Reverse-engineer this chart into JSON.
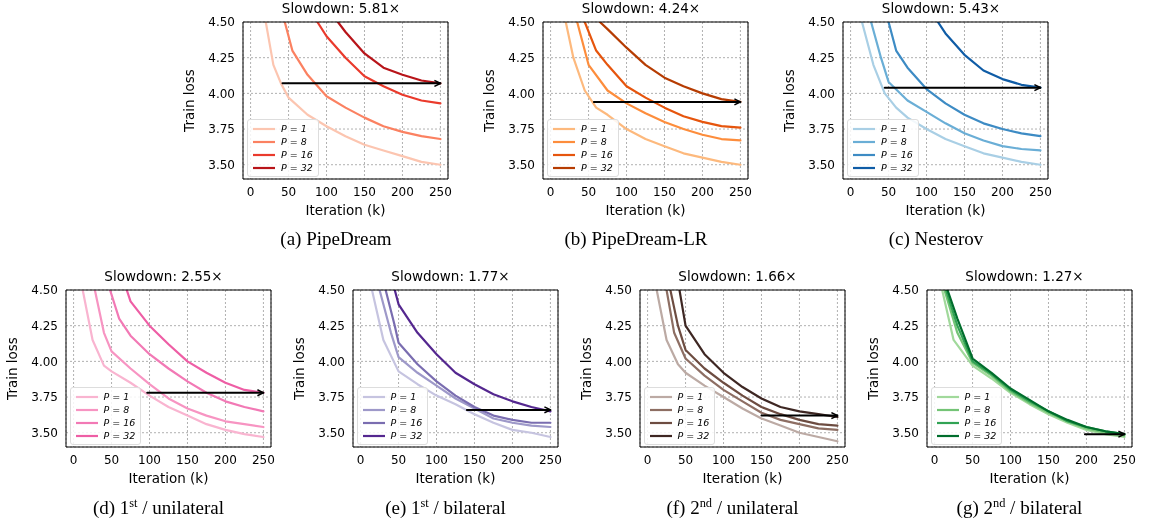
{
  "chart_data": [
    {
      "type": "line",
      "title": "Slowdown: 5.81×",
      "xlabel": "Iteration (k)",
      "ylabel": "Train loss",
      "annotations": [
        "(a) PipeDream"
      ],
      "xlim": [
        -10,
        260
      ],
      "xticks": [
        0,
        50,
        100,
        150,
        200,
        250
      ],
      "ylim": [
        3.4,
        4.5
      ],
      "yticks": [
        {
          "value": 3.5,
          "label": "3.50"
        },
        {
          "value": 3.75,
          "label": "3.75"
        },
        {
          "value": 4,
          "label": "4.00"
        },
        {
          "value": 4.25,
          "label": "4.25"
        },
        {
          "value": 4.5,
          "label": "4.50"
        }
      ],
      "grid": true,
      "legend": "bottom left",
      "series": [
        {
          "name": "P = 1",
          "color": "#fcc5b0",
          "x": [
            20,
            30,
            40,
            50,
            75,
            100,
            125,
            150,
            175,
            200,
            225,
            250
          ],
          "values": [
            4.5,
            4.2,
            4.07,
            3.97,
            3.85,
            3.77,
            3.7,
            3.64,
            3.6,
            3.56,
            3.52,
            3.5
          ]
        },
        {
          "name": "P = 8",
          "color": "#fb8161",
          "x": [
            45,
            55,
            75,
            100,
            125,
            150,
            175,
            200,
            225,
            250
          ],
          "values": [
            4.5,
            4.3,
            4.13,
            3.98,
            3.9,
            3.83,
            3.77,
            3.73,
            3.7,
            3.68
          ]
        },
        {
          "name": "P = 16",
          "color": "#ea3a2c",
          "x": [
            88,
            100,
            125,
            150,
            175,
            200,
            225,
            250
          ],
          "values": [
            4.5,
            4.4,
            4.25,
            4.12,
            4.05,
            3.99,
            3.95,
            3.93
          ]
        },
        {
          "name": "P = 32",
          "color": "#b81419",
          "x": [
            115,
            125,
            150,
            175,
            200,
            225,
            250
          ],
          "values": [
            4.5,
            4.43,
            4.28,
            4.18,
            4.13,
            4.09,
            4.07
          ]
        },
        {
          "type": "line",
          "color": "#000000",
          "x": [
            42,
            250
          ],
          "values": [
            4.07,
            4.07
          ]
        }
      ]
    },
    {
      "type": "line",
      "title": "Slowdown: 4.24×",
      "xlabel": "Iteration (k)",
      "ylabel": "Train loss",
      "annotations": [
        "(b) PipeDream-LR"
      ],
      "xlim": [
        -10,
        260
      ],
      "xticks": [
        0,
        50,
        100,
        150,
        200,
        250
      ],
      "ylim": [
        3.4,
        4.5
      ],
      "yticks": [
        {
          "value": 3.5,
          "label": "3.50"
        },
        {
          "value": 3.75,
          "label": "3.75"
        },
        {
          "value": 4,
          "label": "4.00"
        },
        {
          "value": 4.25,
          "label": "4.25"
        },
        {
          "value": 4.5,
          "label": "4.50"
        }
      ],
      "grid": true,
      "legend": "bottom left",
      "series": [
        {
          "name": "P = 1",
          "color": "#fdb97d",
          "x": [
            20,
            30,
            45,
            60,
            75,
            100,
            125,
            150,
            175,
            200,
            225,
            250
          ],
          "values": [
            4.5,
            4.25,
            4.02,
            3.9,
            3.85,
            3.75,
            3.68,
            3.63,
            3.58,
            3.55,
            3.52,
            3.5
          ]
        },
        {
          "name": "P = 8",
          "color": "#fd8d3c",
          "x": [
            35,
            50,
            75,
            100,
            125,
            150,
            175,
            200,
            225,
            250
          ],
          "values": [
            4.5,
            4.2,
            4.02,
            3.93,
            3.86,
            3.8,
            3.75,
            3.71,
            3.68,
            3.67
          ]
        },
        {
          "name": "P = 16",
          "color": "#e6550d",
          "x": [
            45,
            60,
            75,
            100,
            125,
            150,
            175,
            200,
            225,
            250
          ],
          "values": [
            4.5,
            4.3,
            4.2,
            4.05,
            3.97,
            3.9,
            3.84,
            3.8,
            3.77,
            3.76
          ]
        },
        {
          "name": "P = 32",
          "color": "#b63c02",
          "x": [
            65,
            75,
            100,
            125,
            150,
            175,
            200,
            225,
            250
          ],
          "values": [
            4.5,
            4.45,
            4.32,
            4.2,
            4.11,
            4.05,
            4.0,
            3.96,
            3.94
          ]
        },
        {
          "type": "line",
          "color": "#000000",
          "x": [
            57,
            250
          ],
          "values": [
            3.94,
            3.94
          ]
        }
      ]
    },
    {
      "type": "line",
      "title": "Slowdown: 5.43×",
      "xlabel": "Iteration (k)",
      "ylabel": "Train loss",
      "annotations": [
        "(c) Nesterov"
      ],
      "xlim": [
        -10,
        260
      ],
      "xticks": [
        0,
        50,
        100,
        150,
        200,
        250
      ],
      "ylim": [
        3.4,
        4.5
      ],
      "yticks": [
        {
          "value": 3.5,
          "label": "3.50"
        },
        {
          "value": 3.75,
          "label": "3.75"
        },
        {
          "value": 4,
          "label": "4.00"
        },
        {
          "value": 4.25,
          "label": "4.25"
        },
        {
          "value": 4.5,
          "label": "4.50"
        }
      ],
      "grid": true,
      "legend": "bottom left",
      "series": [
        {
          "name": "P = 1",
          "color": "#a9cfe5",
          "x": [
            15,
            30,
            45,
            60,
            75,
            100,
            125,
            150,
            175,
            200,
            225,
            250
          ],
          "values": [
            4.5,
            4.2,
            4.0,
            3.9,
            3.83,
            3.75,
            3.68,
            3.63,
            3.58,
            3.55,
            3.52,
            3.5
          ]
        },
        {
          "name": "P = 8",
          "color": "#6aaed6",
          "x": [
            27,
            40,
            50,
            75,
            100,
            125,
            150,
            175,
            200,
            225,
            250
          ],
          "values": [
            4.5,
            4.25,
            4.08,
            3.95,
            3.87,
            3.79,
            3.72,
            3.67,
            3.63,
            3.61,
            3.6
          ]
        },
        {
          "name": "P = 16",
          "color": "#3d8bc4",
          "x": [
            50,
            60,
            75,
            100,
            125,
            150,
            175,
            200,
            225,
            250
          ],
          "values": [
            4.5,
            4.3,
            4.18,
            4.03,
            3.93,
            3.85,
            3.79,
            3.75,
            3.72,
            3.7
          ]
        },
        {
          "name": "P = 32",
          "color": "#0f5ca6",
          "x": [
            115,
            125,
            150,
            175,
            200,
            225,
            250
          ],
          "values": [
            4.5,
            4.42,
            4.27,
            4.16,
            4.1,
            4.06,
            4.04
          ]
        },
        {
          "type": "line",
          "color": "#000000",
          "x": [
            45,
            250
          ],
          "values": [
            4.04,
            4.04
          ]
        }
      ]
    },
    {
      "type": "line",
      "title": "Slowdown: 2.55×",
      "xlabel": "Iteration (k)",
      "ylabel": "Train loss",
      "annotations": [
        "(d) 1$^{st}$ / unilateral"
      ],
      "xlim": [
        -10,
        260
      ],
      "xticks": [
        0,
        50,
        100,
        150,
        200,
        250
      ],
      "ylim": [
        3.4,
        4.5
      ],
      "yticks": [
        {
          "value": 3.5,
          "label": "3.50"
        },
        {
          "value": 3.75,
          "label": "3.75"
        },
        {
          "value": 4,
          "label": "4.00"
        },
        {
          "value": 4.25,
          "label": "4.25"
        },
        {
          "value": 4.5,
          "label": "4.50"
        }
      ],
      "grid": true,
      "legend": "bottom left",
      "series": [
        {
          "name": "P = 1",
          "color": "#f9b4d0",
          "x": [
            12,
            25,
            40,
            50,
            75,
            100,
            125,
            150,
            175,
            200,
            225,
            250
          ],
          "values": [
            4.5,
            4.15,
            3.97,
            3.93,
            3.85,
            3.76,
            3.68,
            3.62,
            3.56,
            3.52,
            3.49,
            3.47
          ]
        },
        {
          "name": "P = 8",
          "color": "#f794c2",
          "x": [
            28,
            40,
            50,
            75,
            100,
            125,
            150,
            175,
            200,
            225,
            250
          ],
          "values": [
            4.5,
            4.2,
            4.07,
            3.95,
            3.84,
            3.74,
            3.67,
            3.62,
            3.58,
            3.56,
            3.54
          ]
        },
        {
          "name": "P = 16",
          "color": "#f279b5",
          "x": [
            48,
            60,
            75,
            100,
            125,
            150,
            175,
            200,
            225,
            250
          ],
          "values": [
            4.5,
            4.3,
            4.18,
            4.05,
            3.95,
            3.86,
            3.78,
            3.72,
            3.68,
            3.65
          ]
        },
        {
          "name": "P = 32",
          "color": "#ee5ea5",
          "x": [
            70,
            75,
            100,
            125,
            150,
            175,
            200,
            225,
            250
          ],
          "values": [
            4.5,
            4.42,
            4.25,
            4.12,
            4.0,
            3.92,
            3.85,
            3.8,
            3.78
          ]
        },
        {
          "type": "line",
          "color": "#000000",
          "x": [
            97,
            250
          ],
          "values": [
            3.78,
            3.78
          ]
        }
      ]
    },
    {
      "type": "line",
      "title": "Slowdown: 1.77×",
      "xlabel": "Iteration (k)",
      "ylabel": "Train loss",
      "annotations": [
        "(e) 1$^{st}$ / bilateral"
      ],
      "xlim": [
        -10,
        260
      ],
      "xticks": [
        0,
        50,
        100,
        150,
        200,
        250
      ],
      "ylim": [
        3.4,
        4.5
      ],
      "yticks": [
        {
          "value": 3.5,
          "label": "3.50"
        },
        {
          "value": 3.75,
          "label": "3.75"
        },
        {
          "value": 4,
          "label": "4.00"
        },
        {
          "value": 4.25,
          "label": "4.25"
        },
        {
          "value": 4.5,
          "label": "4.50"
        }
      ],
      "grid": true,
      "legend": "bottom left",
      "series": [
        {
          "name": "P = 1",
          "color": "#c6c4e0",
          "x": [
            15,
            30,
            50,
            75,
            100,
            125,
            150,
            175,
            200,
            225,
            250
          ],
          "values": [
            4.5,
            4.15,
            3.93,
            3.84,
            3.76,
            3.7,
            3.63,
            3.57,
            3.52,
            3.5,
            3.47
          ]
        },
        {
          "name": "P = 8",
          "color": "#9e99c9",
          "x": [
            25,
            40,
            50,
            75,
            100,
            125,
            150,
            175,
            200,
            225,
            250
          ],
          "values": [
            4.5,
            4.2,
            4.03,
            3.92,
            3.83,
            3.74,
            3.67,
            3.6,
            3.57,
            3.55,
            3.54
          ]
        },
        {
          "name": "P = 16",
          "color": "#7a6db0",
          "x": [
            33,
            45,
            50,
            75,
            100,
            125,
            150,
            175,
            200,
            225,
            250
          ],
          "values": [
            4.5,
            4.25,
            4.13,
            3.98,
            3.86,
            3.76,
            3.68,
            3.62,
            3.59,
            3.57,
            3.57
          ]
        },
        {
          "name": "P = 32",
          "color": "#54278f",
          "x": [
            45,
            50,
            75,
            100,
            125,
            150,
            175,
            200,
            225,
            250
          ],
          "values": [
            4.5,
            4.4,
            4.2,
            4.05,
            3.92,
            3.84,
            3.77,
            3.72,
            3.68,
            3.65
          ]
        },
        {
          "type": "line",
          "color": "#000000",
          "x": [
            140,
            250
          ],
          "values": [
            3.66,
            3.66
          ]
        }
      ]
    },
    {
      "type": "line",
      "title": "Slowdown: 1.66×",
      "xlabel": "Iteration (k)",
      "ylabel": "Train loss",
      "annotations": [
        "(f) 2$^{nd}$ / unilateral"
      ],
      "xlim": [
        -10,
        260
      ],
      "xticks": [
        0,
        50,
        100,
        150,
        200,
        250
      ],
      "ylim": [
        3.4,
        4.5
      ],
      "yticks": [
        {
          "value": 3.5,
          "label": "3.50"
        },
        {
          "value": 3.75,
          "label": "3.75"
        },
        {
          "value": 4,
          "label": "4.00"
        },
        {
          "value": 4.25,
          "label": "4.25"
        },
        {
          "value": 4.5,
          "label": "4.50"
        }
      ],
      "grid": true,
      "legend": "bottom left",
      "series": [
        {
          "name": "P = 1",
          "color": "#bcaaa4",
          "x": [
            12,
            25,
            40,
            50,
            75,
            100,
            125,
            150,
            175,
            200,
            225,
            250
          ],
          "values": [
            4.5,
            4.15,
            3.98,
            3.92,
            3.83,
            3.75,
            3.67,
            3.6,
            3.55,
            3.5,
            3.47,
            3.44
          ]
        },
        {
          "name": "P = 8",
          "color": "#8d6e63",
          "x": [
            25,
            35,
            50,
            75,
            100,
            125,
            150,
            175,
            200,
            225,
            250
          ],
          "values": [
            4.5,
            4.2,
            4.02,
            3.9,
            3.8,
            3.72,
            3.64,
            3.59,
            3.56,
            3.53,
            3.52
          ]
        },
        {
          "name": "P = 16",
          "color": "#6d4c41",
          "x": [
            30,
            40,
            50,
            75,
            100,
            125,
            150,
            175,
            200,
            225,
            250
          ],
          "values": [
            4.5,
            4.25,
            4.08,
            3.95,
            3.85,
            3.76,
            3.68,
            3.63,
            3.59,
            3.56,
            3.55
          ]
        },
        {
          "name": "P = 32",
          "color": "#3e2723",
          "x": [
            42,
            50,
            75,
            100,
            125,
            150,
            175,
            200,
            225,
            250
          ],
          "values": [
            4.5,
            4.25,
            4.05,
            3.92,
            3.82,
            3.74,
            3.68,
            3.65,
            3.63,
            3.61
          ]
        },
        {
          "type": "line",
          "color": "#000000",
          "x": [
            150,
            250
          ],
          "values": [
            3.62,
            3.62
          ]
        }
      ]
    },
    {
      "type": "line",
      "title": "Slowdown: 1.27×",
      "xlabel": "Iteration (k)",
      "ylabel": "Train loss",
      "annotations": [
        "(g) 2$^{nd}$ / bilateral"
      ],
      "xlim": [
        -10,
        260
      ],
      "xticks": [
        0,
        50,
        100,
        150,
        200,
        250
      ],
      "ylim": [
        3.4,
        4.5
      ],
      "yticks": [
        {
          "value": 3.5,
          "label": "3.50"
        },
        {
          "value": 3.75,
          "label": "3.75"
        },
        {
          "value": 4,
          "label": "4.00"
        },
        {
          "value": 4.25,
          "label": "4.25"
        },
        {
          "value": 4.5,
          "label": "4.50"
        }
      ],
      "grid": true,
      "legend": "bottom left",
      "series": [
        {
          "name": "P = 1",
          "color": "#a1d99b",
          "x": [
            10,
            25,
            50,
            75,
            100,
            125,
            150,
            175,
            200,
            225,
            250
          ],
          "values": [
            4.5,
            4.15,
            3.97,
            3.88,
            3.78,
            3.7,
            3.63,
            3.57,
            3.52,
            3.49,
            3.47
          ]
        },
        {
          "name": "P = 8",
          "color": "#74c476",
          "x": [
            13,
            30,
            50,
            75,
            100,
            125,
            150,
            175,
            200,
            225,
            250
          ],
          "values": [
            4.5,
            4.2,
            3.99,
            3.9,
            3.79,
            3.71,
            3.64,
            3.58,
            3.53,
            3.5,
            3.48
          ]
        },
        {
          "name": "P = 16",
          "color": "#31a354",
          "x": [
            15,
            30,
            50,
            75,
            100,
            125,
            150,
            175,
            200,
            225,
            250
          ],
          "values": [
            4.5,
            4.25,
            4.0,
            3.91,
            3.8,
            3.72,
            3.65,
            3.58,
            3.54,
            3.51,
            3.49
          ]
        },
        {
          "name": "P = 32",
          "color": "#006d2c",
          "x": [
            17,
            30,
            50,
            75,
            100,
            125,
            150,
            175,
            200,
            225,
            250
          ],
          "values": [
            4.5,
            4.3,
            4.02,
            3.92,
            3.81,
            3.73,
            3.65,
            3.59,
            3.54,
            3.51,
            3.49
          ]
        },
        {
          "type": "line",
          "color": "#000000",
          "x": [
            198,
            250
          ],
          "values": [
            3.49,
            3.49
          ]
        }
      ]
    }
  ]
}
